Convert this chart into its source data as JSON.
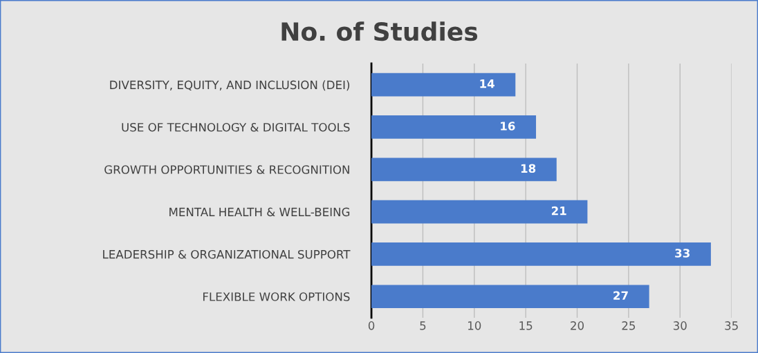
{
  "chart_data": {
    "type": "bar",
    "orientation": "horizontal",
    "title": "No. of Studies",
    "categories": [
      "DIVERSITY, EQUITY, AND INCLUSION (DEI)",
      "USE OF TECHNOLOGY & DIGITAL TOOLS",
      "GROWTH OPPORTUNITIES & RECOGNITION",
      "MENTAL HEALTH & WELL-BEING",
      "LEADERSHIP & ORGANIZATIONAL SUPPORT",
      "FLEXIBLE WORK OPTIONS"
    ],
    "values": [
      14,
      16,
      18,
      21,
      33,
      27
    ],
    "color": "#4a7bcb",
    "xlim": [
      0,
      35
    ],
    "xticks": [
      0,
      5,
      10,
      15,
      20,
      25,
      30,
      35
    ],
    "grid": "x",
    "data_labels": true
  }
}
